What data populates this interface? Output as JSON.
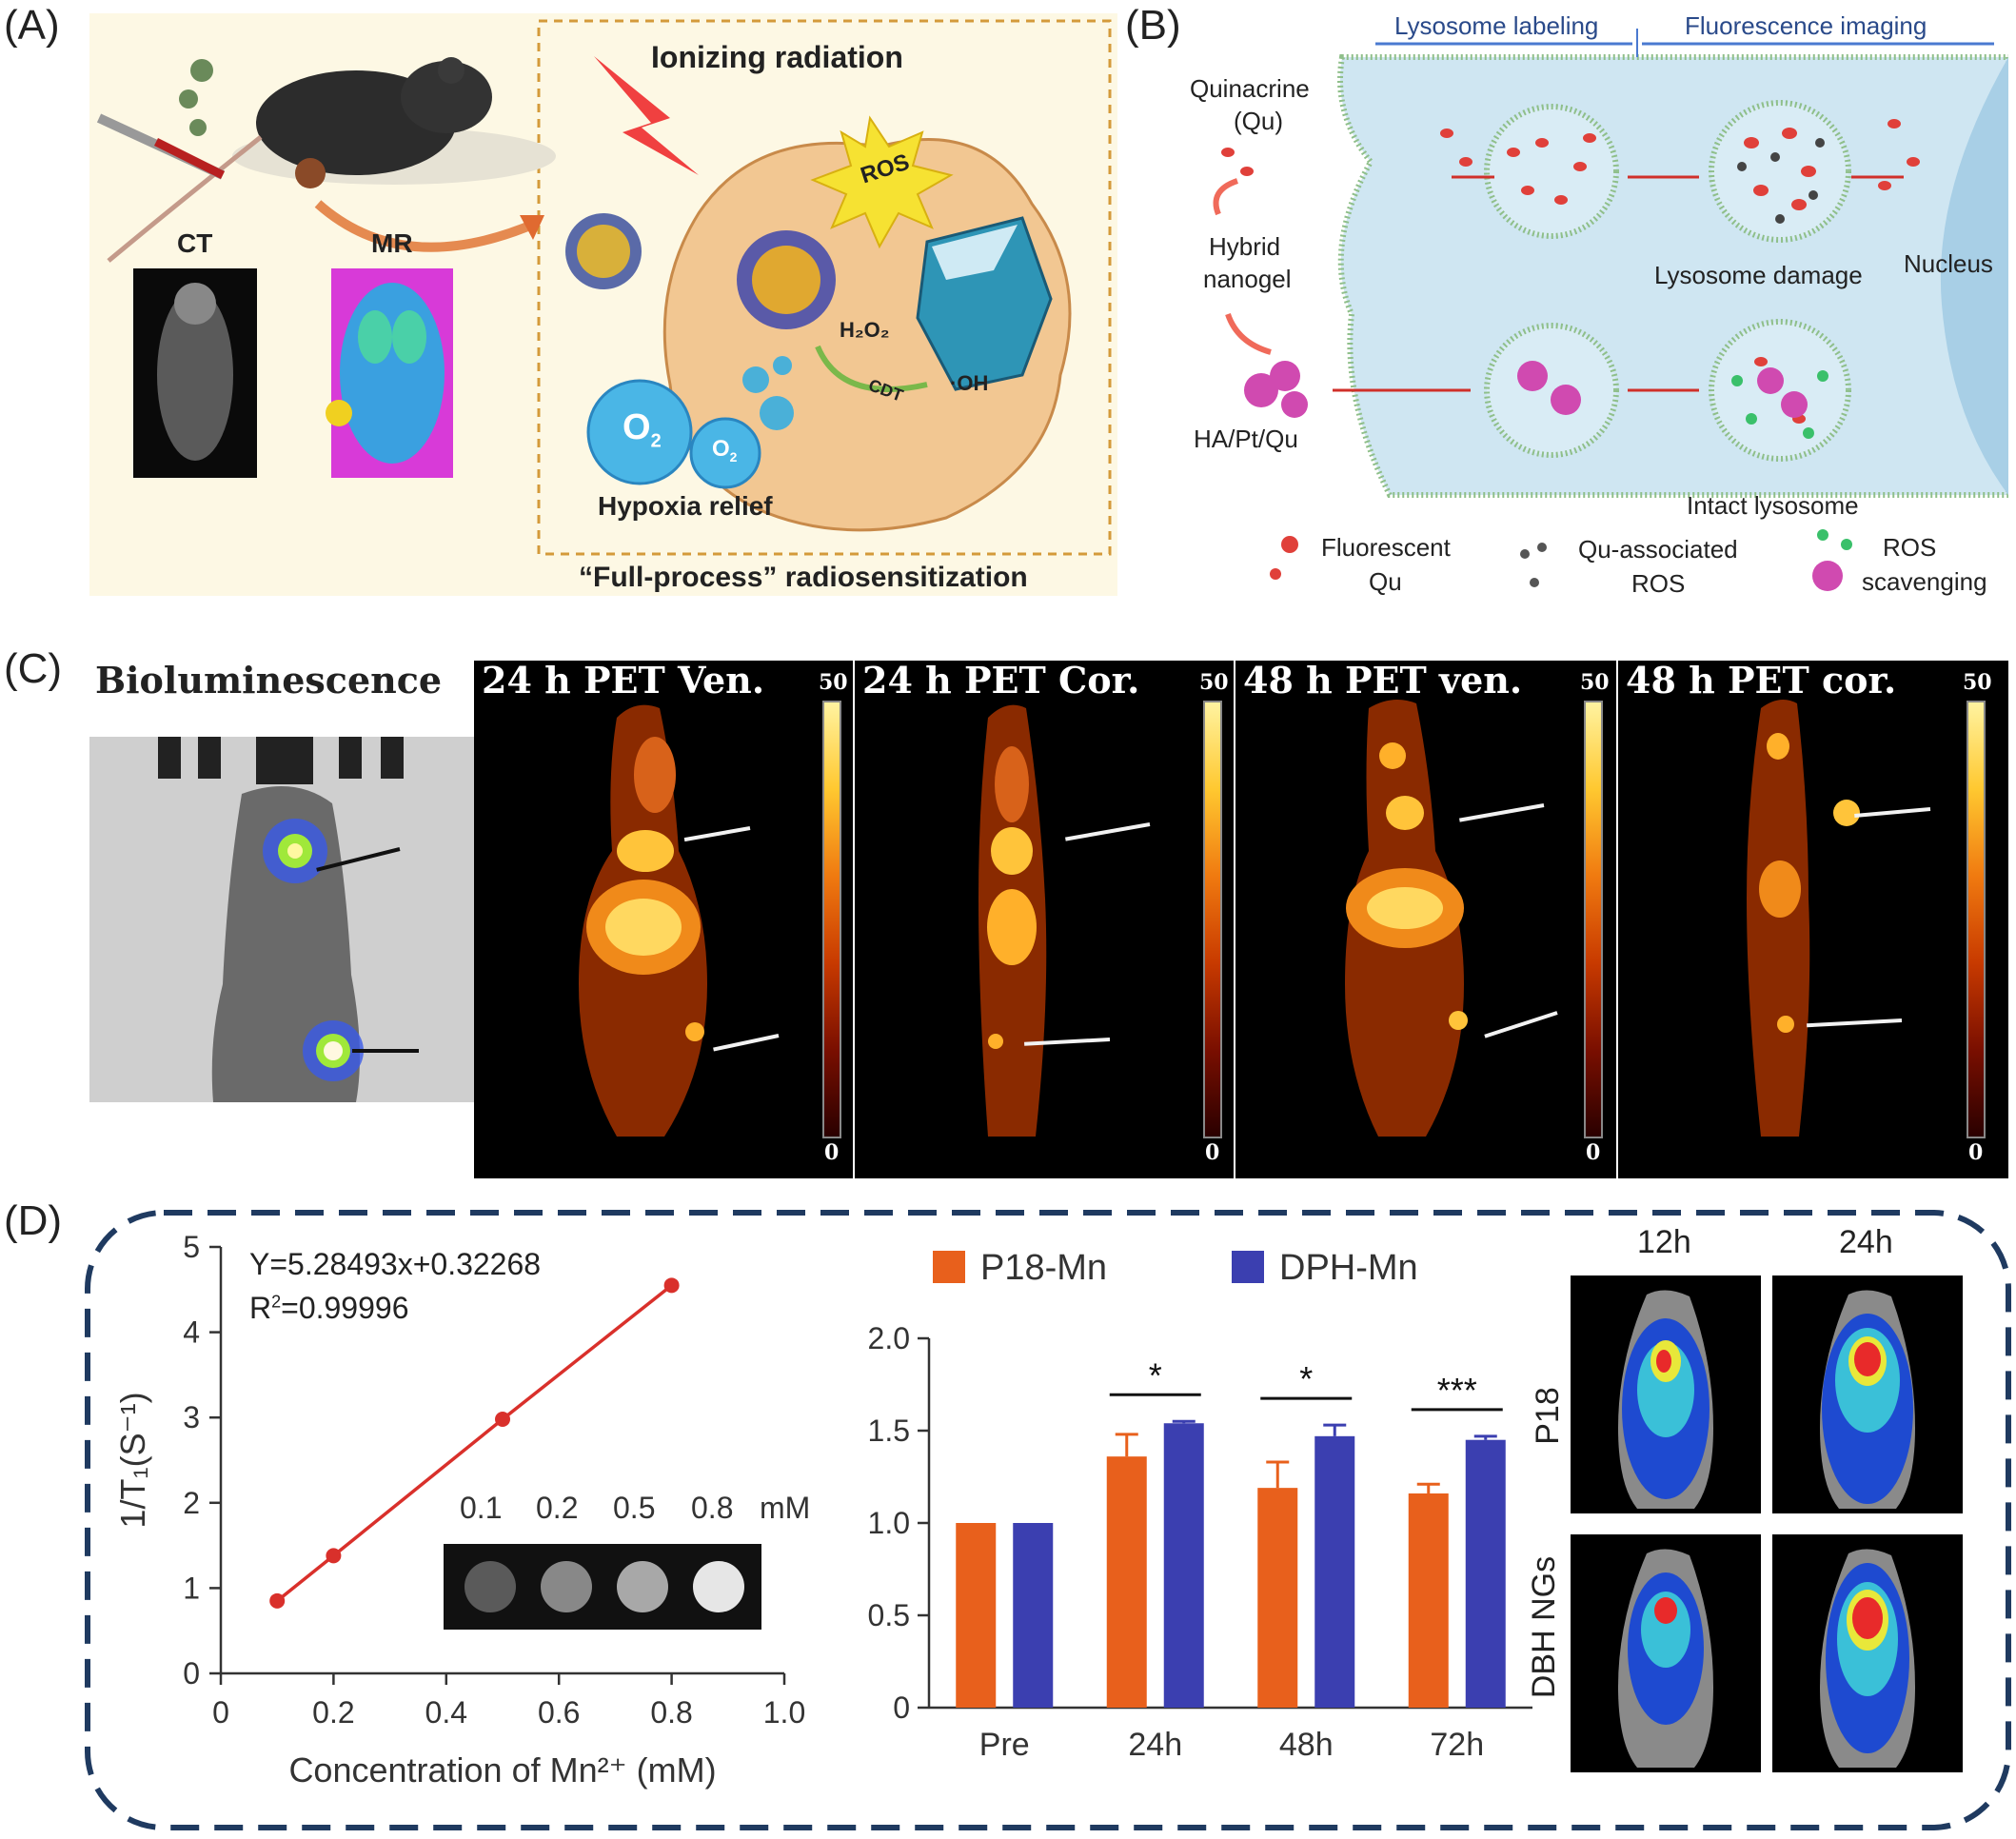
{
  "panels": {
    "a": {
      "label": "(A)",
      "ionizing": "Ionizing radiation",
      "ros": "ROS",
      "h2o2": "H₂O₂",
      "cdt": "CDT",
      "oh": "·OH",
      "o2": "O",
      "o2_sub": "2",
      "ct": "CT",
      "mr": "MR",
      "hypoxia": "Hypoxia relief",
      "caption": "“Full-process” radiosensitization"
    },
    "b": {
      "label": "(B)",
      "lysosome_labeling": "Lysosome labeling",
      "fluorescence_imaging": "Fluorescence imaging",
      "quinacrine_1": "Quinacrine",
      "quinacrine_2": "(Qu)",
      "hybrid_1": "Hybrid",
      "hybrid_2": "nanogel",
      "hapt": "HA/Pt/Qu",
      "damage": "Lysosome damage",
      "nucleus": "Nucleus",
      "intact": "Intact lysosome",
      "leg1_1": "Fluorescent",
      "leg1_2": "Qu",
      "leg2_1": "Qu-associated",
      "leg2_2": "ROS",
      "leg3_1": "ROS",
      "leg3_2": "scavenging"
    },
    "c": {
      "label": "(C)",
      "bio": "Bioluminescence",
      "pet_titles": [
        "24 h PET Ven.",
        "24 h PET Cor.",
        "48 h PET ven.",
        "48 h PET cor."
      ],
      "scale_max": "50",
      "scale_min": "0"
    },
    "d": {
      "label": "(D)",
      "equation": "Y=5.28493x+0.32268",
      "r2_base": "R",
      "r2_sup": "2",
      "r2_val": "=0.99996",
      "inset_labels": [
        "0.1",
        "0.2",
        "0.5",
        "0.8"
      ],
      "inset_unit": "mM",
      "time_12h": "12h",
      "time_24h": "24h",
      "row_p18": "P18",
      "row_dbh": "DBH NGs"
    }
  },
  "chart_data": [
    {
      "type": "line",
      "x": [
        0.1,
        0.2,
        0.5,
        0.8
      ],
      "y": [
        0.85,
        1.38,
        2.98,
        4.55
      ],
      "xlabel": "Concentration of Mn²⁺ (mM)",
      "ylabel": "1/T₁(S⁻¹)",
      "xlim": [
        0,
        1.0
      ],
      "ylim": [
        0,
        5
      ],
      "xticks": [
        "0",
        "0.2",
        "0.4",
        "0.6",
        "0.8",
        "1.0"
      ],
      "yticks": [
        "0",
        "1",
        "2",
        "3",
        "4",
        "5"
      ],
      "color": "#d9302b"
    },
    {
      "type": "bar",
      "categories": [
        "Pre",
        "24h",
        "48h",
        "72h"
      ],
      "series": [
        {
          "name": "P18-Mn",
          "values": [
            1.0,
            1.36,
            1.19,
            1.16
          ],
          "errors": [
            0,
            0.12,
            0.14,
            0.05
          ],
          "color": "#e8601c"
        },
        {
          "name": "DPH-Mn",
          "values": [
            1.0,
            1.54,
            1.47,
            1.45
          ],
          "errors": [
            0,
            0.01,
            0.06,
            0.02
          ],
          "color": "#3b3fb0"
        }
      ],
      "significance": [
        "",
        "*",
        "*",
        "***"
      ],
      "ylim": [
        0,
        2.0
      ],
      "yticks": [
        "0",
        "0.5",
        "1.0",
        "1.5",
        "2.0"
      ],
      "legend": "top"
    }
  ]
}
